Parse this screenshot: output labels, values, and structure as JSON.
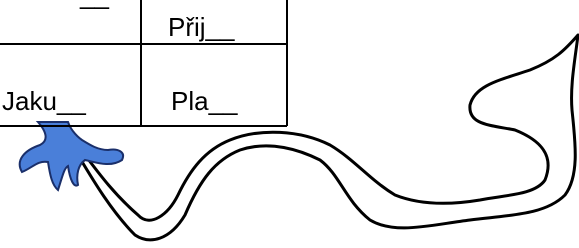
{
  "table": {
    "rows": [
      [
        "__",
        "Přij__"
      ],
      [
        "Jaku__",
        "Pla__"
      ]
    ]
  }
}
